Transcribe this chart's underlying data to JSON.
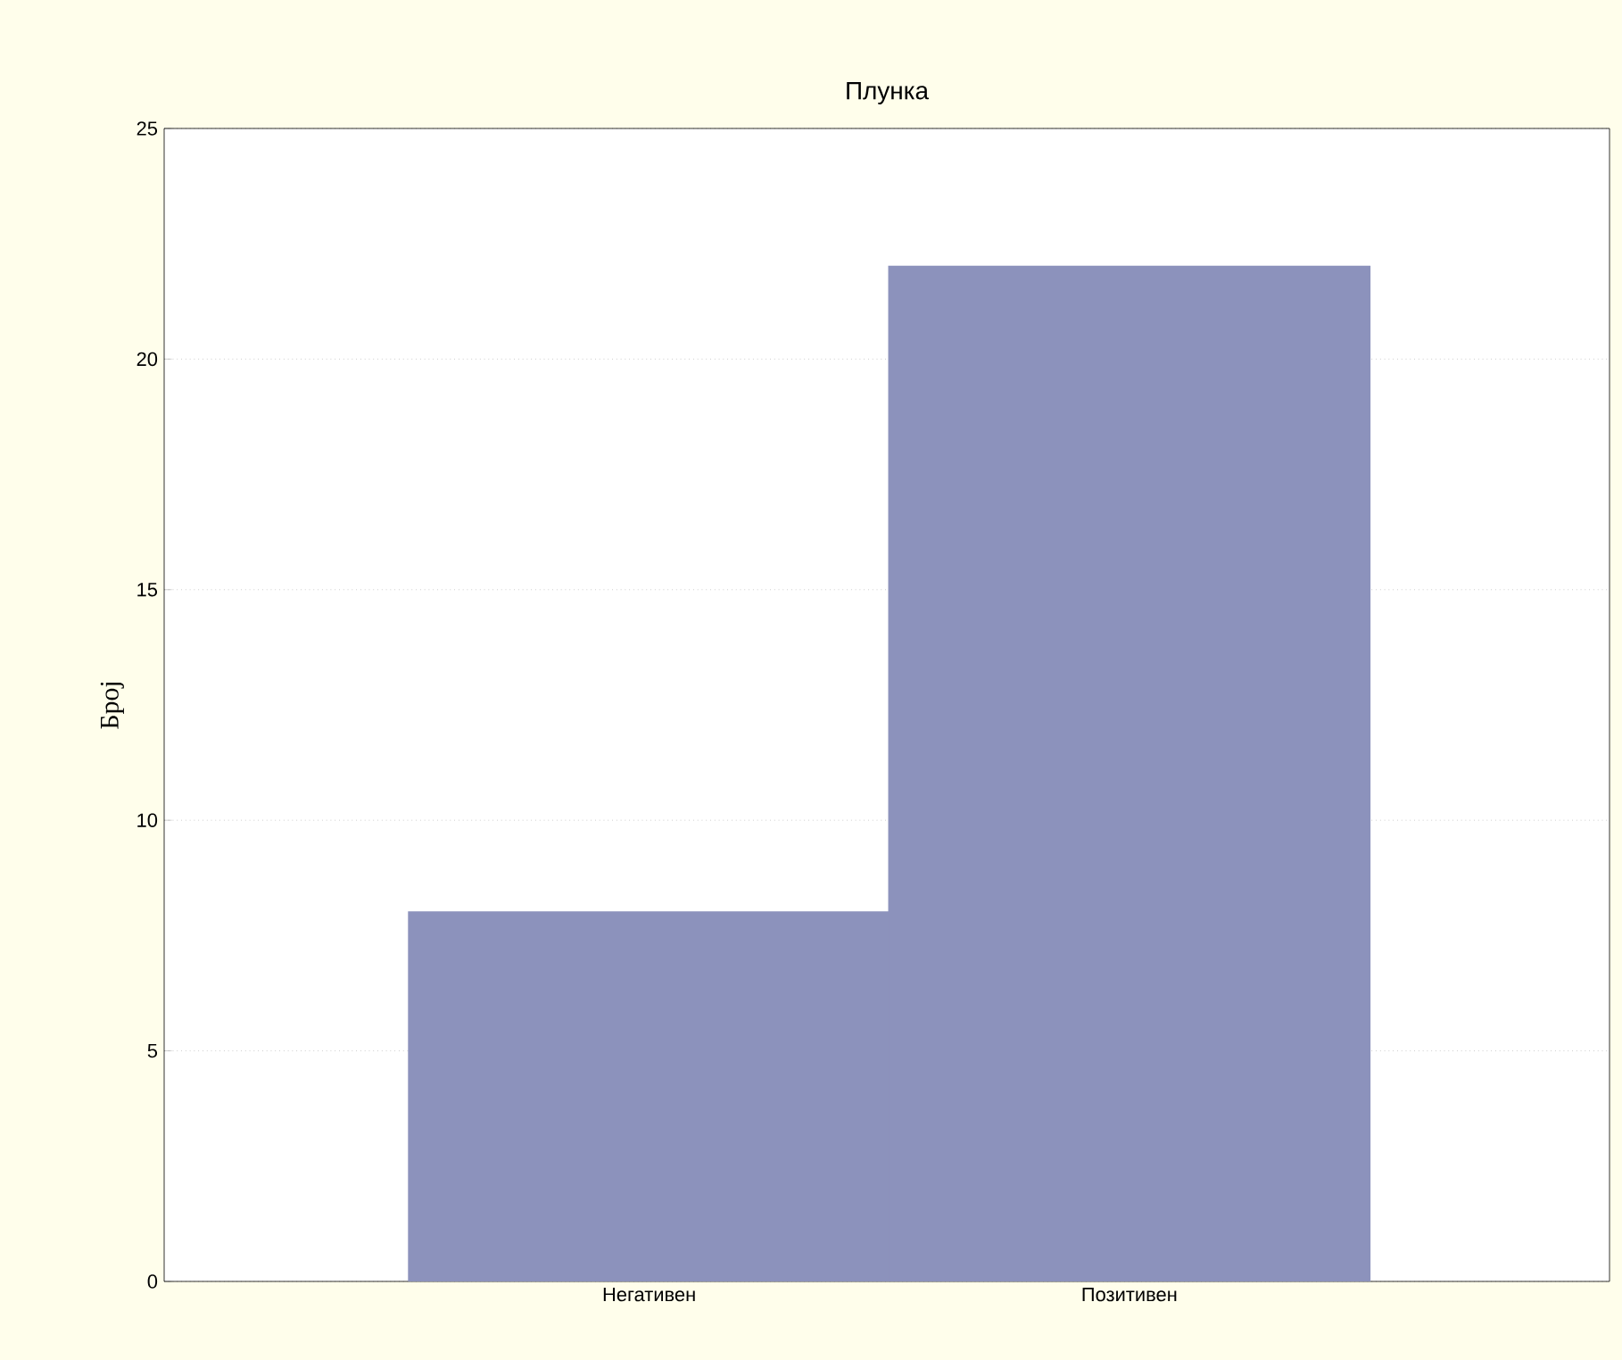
{
  "chart_data": {
    "type": "bar",
    "title": "Плунка",
    "ylabel": "Број",
    "categories": [
      "Негативен",
      "Позитивен"
    ],
    "values": [
      8,
      22
    ],
    "color": "#8c92bc",
    "ylim": [
      0,
      25
    ],
    "yticks": [
      0,
      5,
      10,
      15,
      20,
      25
    ],
    "grid": "y"
  }
}
